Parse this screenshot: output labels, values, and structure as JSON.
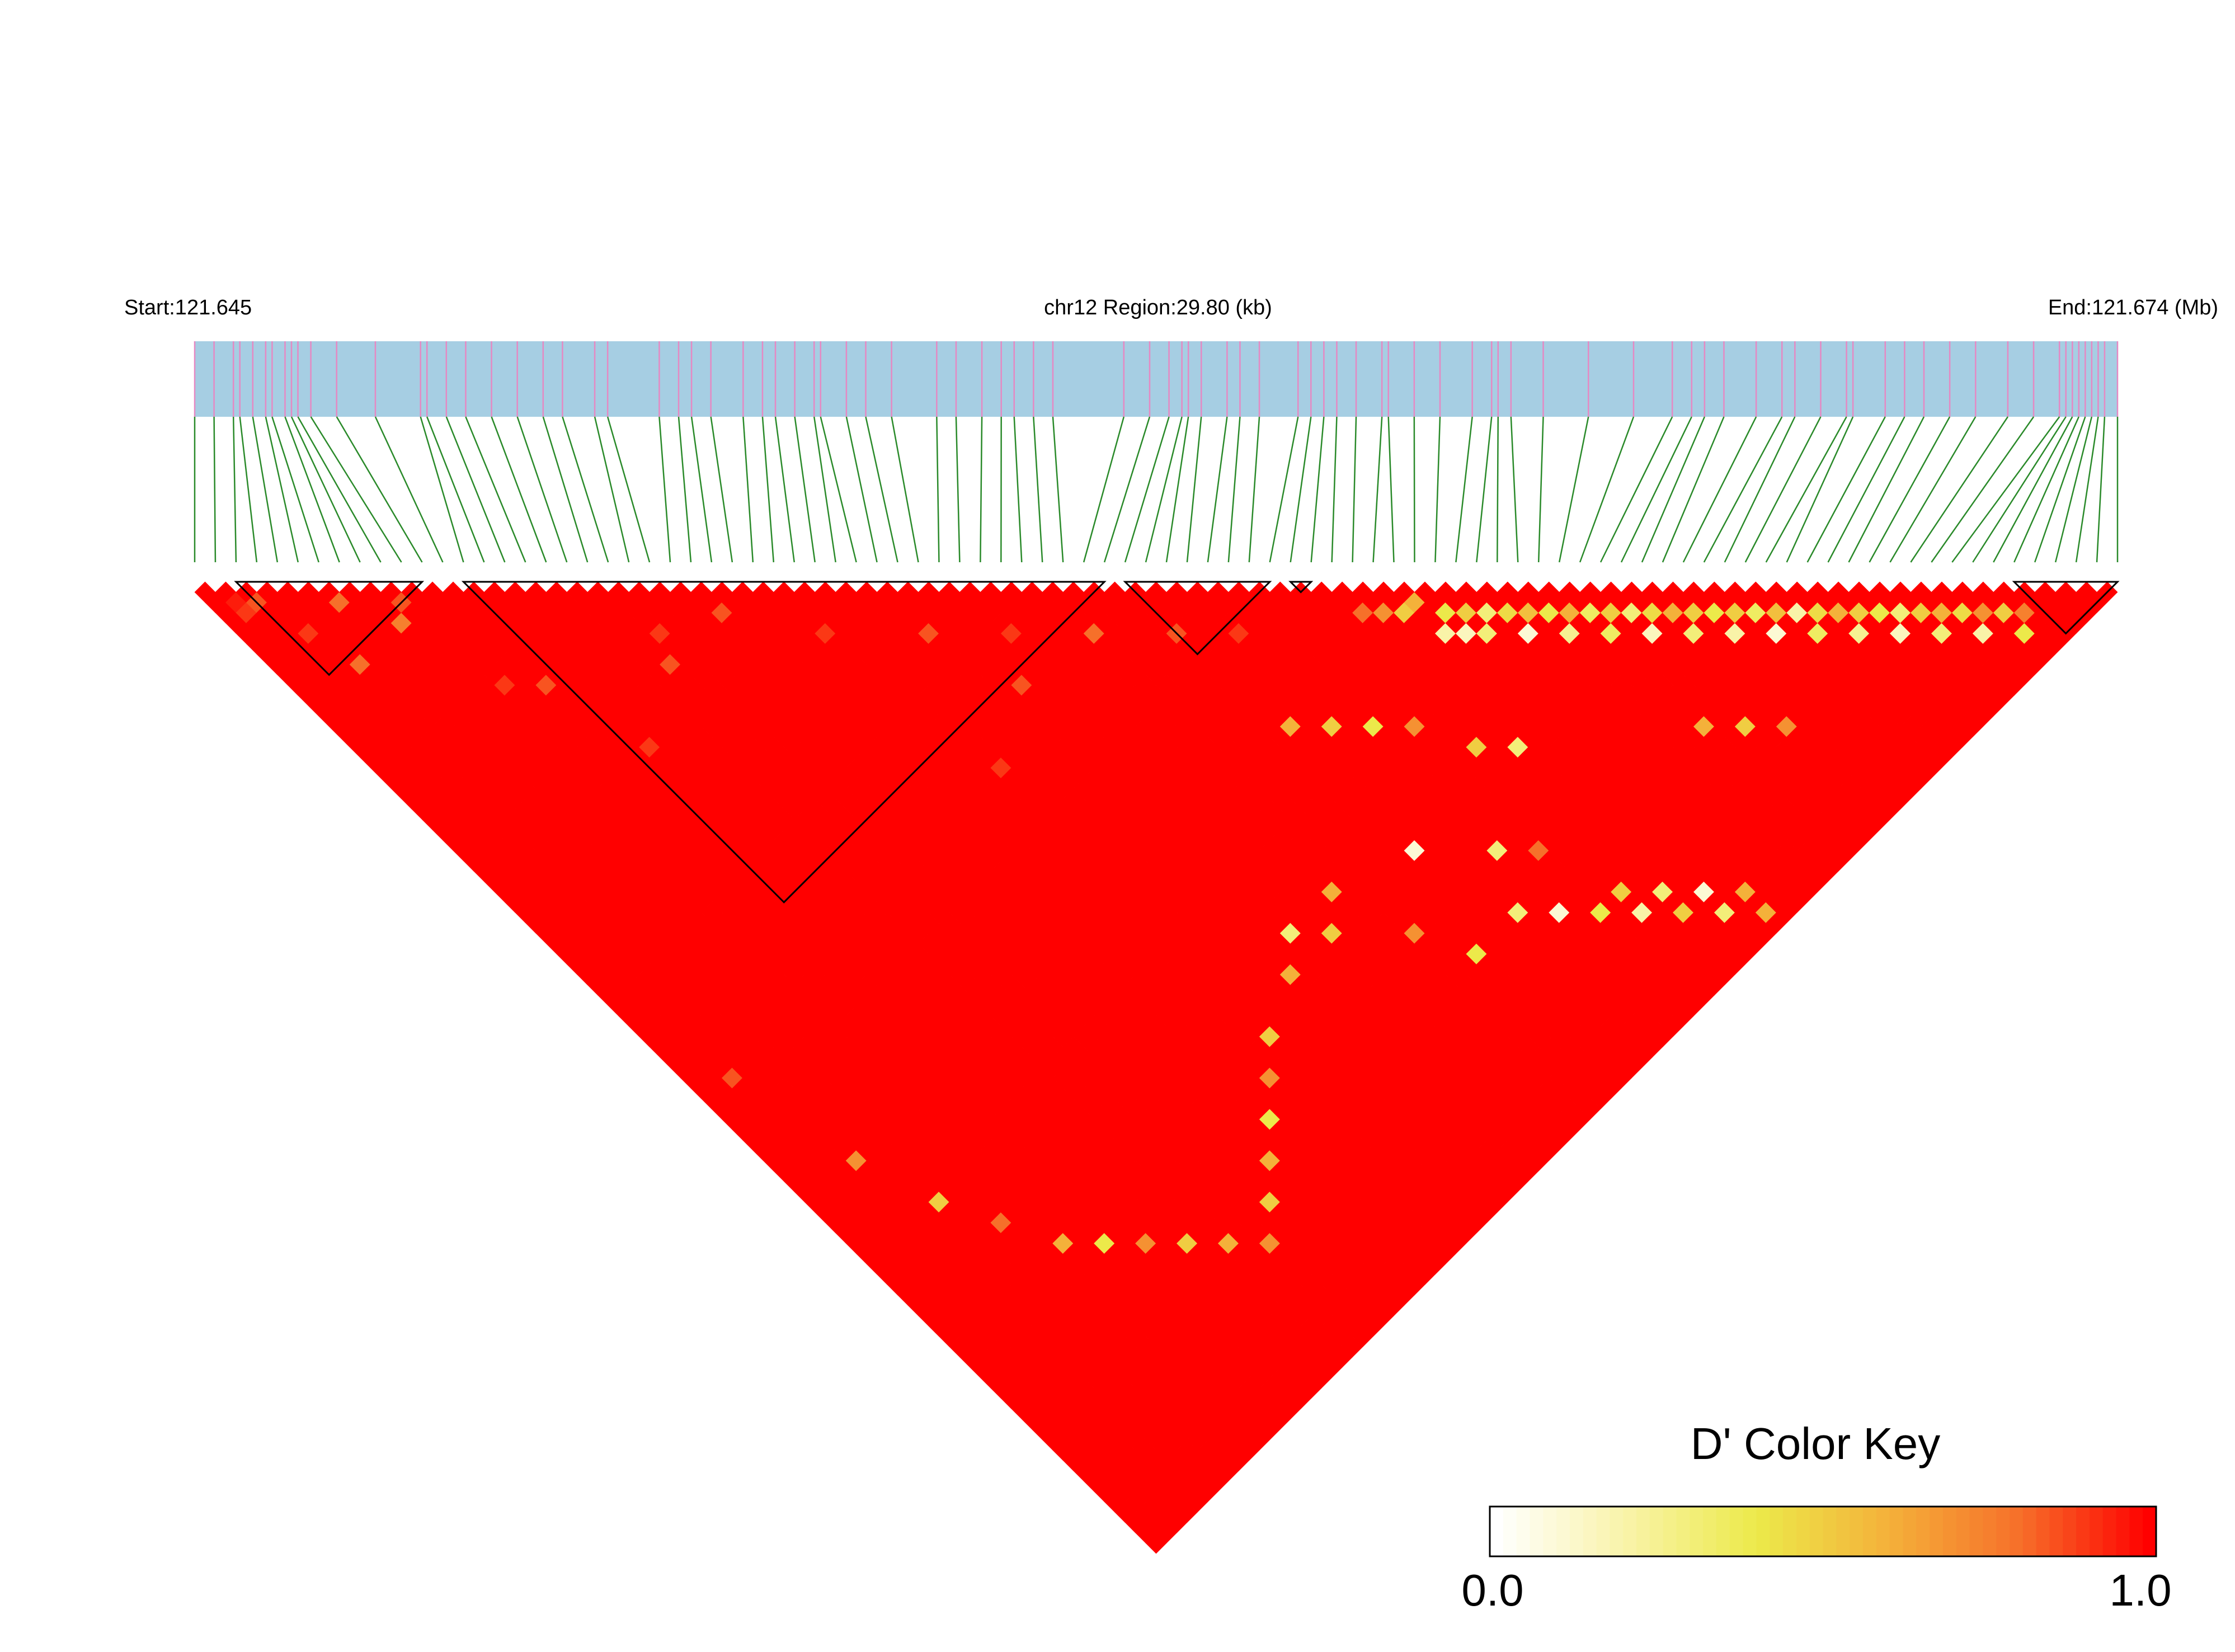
{
  "chart_data": {
    "type": "heatmap",
    "subtype": "linkage-disequilibrium-triangle",
    "region": {
      "start_label": "Start:121.645",
      "center_label": "chr12 Region:29.80 (kb)",
      "end_label": "End:121.674 (Mb)",
      "chromosome": "chr12",
      "start_mb": 121.645,
      "end_mb": 121.674,
      "length_kb": 29.8
    },
    "snp_count": 94,
    "snp_positions_kb": [
      0.0,
      0.3,
      0.6,
      0.7,
      0.9,
      1.1,
      1.2,
      1.4,
      1.5,
      1.6,
      1.8,
      2.2,
      2.8,
      3.5,
      3.6,
      3.9,
      4.2,
      4.6,
      5.0,
      5.4,
      5.7,
      6.2,
      6.4,
      7.2,
      7.5,
      7.7,
      8.0,
      8.5,
      8.8,
      9.0,
      9.3,
      9.6,
      9.7,
      10.1,
      10.4,
      10.8,
      11.5,
      11.8,
      12.2,
      12.5,
      12.7,
      13.0,
      13.3,
      14.4,
      14.8,
      15.1,
      15.3,
      15.4,
      15.6,
      16.0,
      16.2,
      16.5,
      17.1,
      17.3,
      17.5,
      17.7,
      18.0,
      18.4,
      18.5,
      18.9,
      19.3,
      19.8,
      20.1,
      20.2,
      20.4,
      20.9,
      21.6,
      22.3,
      22.9,
      23.2,
      23.4,
      23.7,
      24.2,
      24.6,
      24.8,
      25.2,
      25.6,
      25.7,
      26.2,
      26.5,
      26.8,
      27.2,
      27.6,
      28.1,
      28.5,
      28.9,
      29.0,
      29.1,
      29.2,
      29.3,
      29.4,
      29.5,
      29.6,
      29.8
    ],
    "haplotype_blocks": [
      {
        "first_snp": 2,
        "last_snp": 11
      },
      {
        "first_snp": 13,
        "last_snp": 44
      },
      {
        "first_snp": 45,
        "last_snp": 52
      },
      {
        "first_snp": 53,
        "last_snp": 54
      },
      {
        "first_snp": 88,
        "last_snp": 93
      }
    ],
    "default_dprime": 1.0,
    "dprime_exceptions": [
      [
        1,
        3,
        0.95
      ],
      [
        1,
        4,
        0.9
      ],
      [
        2,
        4,
        0.85
      ],
      [
        6,
        8,
        0.8
      ],
      [
        3,
        8,
        0.9
      ],
      [
        9,
        11,
        0.85
      ],
      [
        4,
        12,
        0.8
      ],
      [
        8,
        12,
        0.75
      ],
      [
        20,
        25,
        0.9
      ],
      [
        24,
        27,
        0.85
      ],
      [
        19,
        27,
        0.85
      ],
      [
        28,
        33,
        0.9
      ],
      [
        33,
        38,
        0.85
      ],
      [
        37,
        42,
        0.9
      ],
      [
        41,
        46,
        0.8
      ],
      [
        45,
        50,
        0.85
      ],
      [
        48,
        53,
        0.9
      ],
      [
        10,
        20,
        0.9
      ],
      [
        12,
        22,
        0.85
      ],
      [
        14,
        30,
        0.9
      ],
      [
        30,
        48,
        0.9
      ],
      [
        35,
        45,
        0.85
      ],
      [
        55,
        58,
        0.8
      ],
      [
        56,
        59,
        0.7
      ],
      [
        57,
        60,
        0.5
      ],
      [
        58,
        60,
        0.6
      ],
      [
        59,
        62,
        0.4
      ],
      [
        60,
        63,
        0.5
      ],
      [
        61,
        64,
        0.3
      ],
      [
        62,
        65,
        0.45
      ],
      [
        63,
        66,
        0.55
      ],
      [
        64,
        67,
        0.4
      ],
      [
        65,
        68,
        0.6
      ],
      [
        66,
        69,
        0.35
      ],
      [
        67,
        70,
        0.5
      ],
      [
        68,
        71,
        0.3
      ],
      [
        69,
        72,
        0.45
      ],
      [
        70,
        73,
        0.6
      ],
      [
        71,
        74,
        0.5
      ],
      [
        72,
        75,
        0.4
      ],
      [
        73,
        76,
        0.5
      ],
      [
        74,
        77,
        0.35
      ],
      [
        75,
        78,
        0.55
      ],
      [
        76,
        79,
        0.2
      ],
      [
        77,
        80,
        0.45
      ],
      [
        78,
        81,
        0.6
      ],
      [
        79,
        82,
        0.5
      ],
      [
        80,
        83,
        0.4
      ],
      [
        81,
        84,
        0.3
      ],
      [
        82,
        85,
        0.5
      ],
      [
        83,
        86,
        0.6
      ],
      [
        84,
        87,
        0.45
      ],
      [
        85,
        88,
        0.7
      ],
      [
        86,
        89,
        0.5
      ],
      [
        87,
        90,
        0.75
      ],
      [
        58,
        63,
        0.2
      ],
      [
        59,
        64,
        0.15
      ],
      [
        60,
        65,
        0.3
      ],
      [
        62,
        67,
        0.1
      ],
      [
        64,
        69,
        0.25
      ],
      [
        66,
        71,
        0.35
      ],
      [
        68,
        73,
        0.15
      ],
      [
        70,
        75,
        0.3
      ],
      [
        72,
        77,
        0.2
      ],
      [
        74,
        79,
        0.1
      ],
      [
        76,
        81,
        0.35
      ],
      [
        78,
        83,
        0.25
      ],
      [
        80,
        85,
        0.15
      ],
      [
        82,
        87,
        0.3
      ],
      [
        84,
        89,
        0.2
      ],
      [
        86,
        91,
        0.4
      ],
      [
        46,
        72,
        0.1
      ],
      [
        50,
        76,
        0.3
      ],
      [
        52,
        78,
        0.8
      ],
      [
        40,
        70,
        0.6
      ],
      [
        38,
        72,
        0.5
      ],
      [
        42,
        76,
        0.7
      ],
      [
        44,
        80,
        0.4
      ],
      [
        54,
        84,
        0.5
      ],
      [
        56,
        86,
        0.3
      ],
      [
        58,
        88,
        0.1
      ],
      [
        60,
        90,
        0.6
      ],
      [
        36,
        70,
        0.3
      ],
      [
        34,
        72,
        0.6
      ],
      [
        30,
        74,
        0.5
      ],
      [
        28,
        76,
        0.7
      ],
      [
        26,
        78,
        0.4
      ],
      [
        24,
        80,
        0.6
      ],
      [
        22,
        82,
        0.5
      ],
      [
        20,
        84,
        0.7
      ],
      [
        48,
        80,
        0.3
      ],
      [
        50,
        82,
        0.1
      ],
      [
        52,
        84,
        0.4
      ],
      [
        54,
        86,
        0.2
      ],
      [
        56,
        88,
        0.5
      ],
      [
        58,
        90,
        0.3
      ],
      [
        60,
        92,
        0.6
      ],
      [
        2,
        50,
        0.85
      ],
      [
        4,
        60,
        0.7
      ],
      [
        6,
        66,
        0.5
      ],
      [
        8,
        70,
        0.8
      ],
      [
        10,
        74,
        0.6
      ],
      [
        12,
        76,
        0.4
      ],
      [
        14,
        78,
        0.7
      ],
      [
        16,
        80,
        0.5
      ],
      [
        18,
        82,
        0.6
      ],
      [
        46,
        60,
        0.6
      ],
      [
        48,
        62,
        0.5
      ],
      [
        50,
        64,
        0.4
      ],
      [
        52,
        66,
        0.7
      ],
      [
        54,
        70,
        0.5
      ],
      [
        56,
        72,
        0.3
      ],
      [
        66,
        80,
        0.6
      ],
      [
        68,
        82,
        0.5
      ],
      [
        70,
        84,
        0.7
      ]
    ],
    "color_key": {
      "title": "D' Color Key",
      "min_label": "0.0",
      "max_label": "1.0",
      "min": 0.0,
      "max": 1.0,
      "gradient": [
        "#ffffff",
        "#f9f3a8",
        "#ece94a",
        "#f4b13a",
        "#f6702a",
        "#ff0000"
      ]
    },
    "colors": {
      "gene_bar": "#a6cee3",
      "snp_tick": "#e589c3",
      "connector": "#2a8a2a",
      "ld_high": "#ff0000",
      "block_outline": "#000000"
    }
  }
}
